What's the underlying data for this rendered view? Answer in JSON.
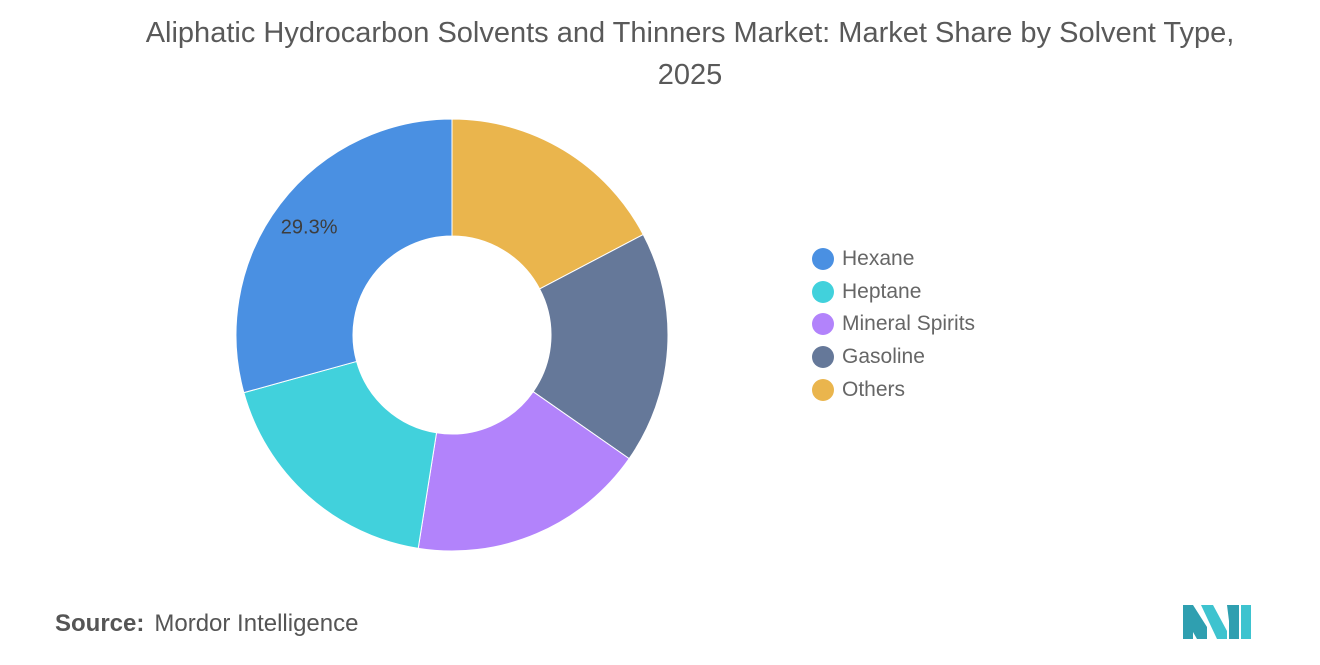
{
  "chart_data": {
    "type": "pie",
    "title": "Aliphatic Hydrocarbon Solvents and Thinners Market: Market Share by Solvent Type, 2025",
    "categories": [
      "Hexane",
      "Heptane",
      "Mineral Spirits",
      "Gasoline",
      "Others"
    ],
    "values": [
      29.3,
      18.2,
      17.8,
      17.4,
      17.3
    ],
    "colors": [
      "#4a90e2",
      "#41d1dc",
      "#b283fb",
      "#657899",
      "#eab54d"
    ],
    "data_labels": [
      {
        "category": "Hexane",
        "text": "29.3%"
      }
    ],
    "start_category": "Others",
    "direction": "clockwise from top",
    "donut": true,
    "legend_position": "right"
  },
  "source": {
    "label": "Source:",
    "value": "Mordor Intelligence"
  },
  "logo": {
    "icon": "mordor-intelligence-logo",
    "color": "#3ec3cf"
  }
}
